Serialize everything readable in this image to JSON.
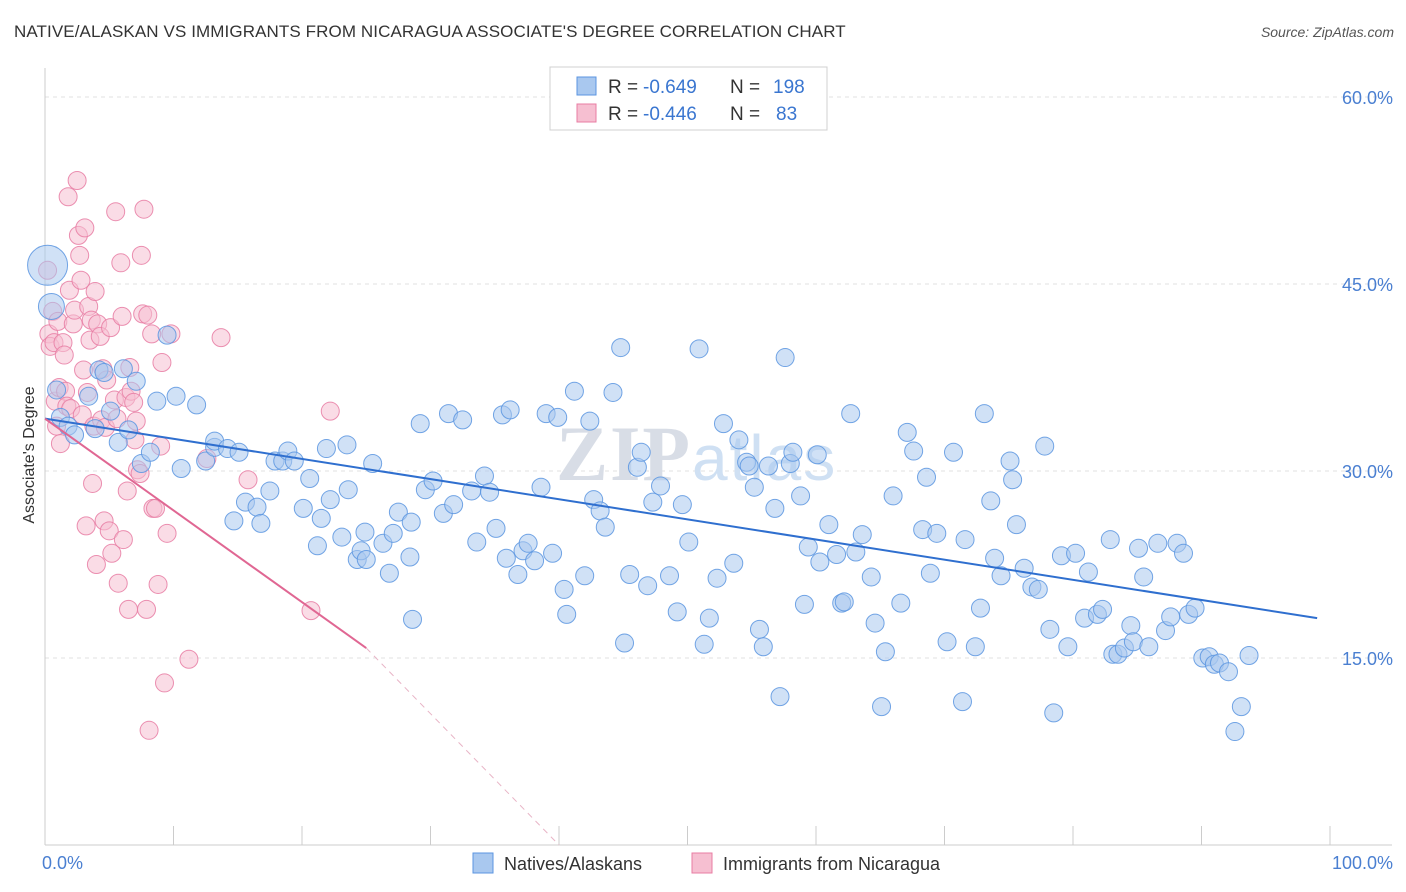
{
  "header": {
    "title": "NATIVE/ALASKAN VS IMMIGRANTS FROM NICARAGUA ASSOCIATE'S DEGREE CORRELATION CHART",
    "source": "Source: ZipAtlas.com"
  },
  "colors": {
    "blue": "#5b95e0",
    "blue_fill": "#a9c8ef",
    "pink": "#e87ca3",
    "pink_fill": "#f6bfd1",
    "blue_line": "#2f6fcf",
    "pink_line": "#e06793",
    "tick_text": "#4a7fd1"
  },
  "legend": {
    "rows": [
      {
        "r_label": "R =",
        "r_value": "-0.649",
        "n_label": "N =",
        "n_value": "198"
      },
      {
        "r_label": "R =",
        "r_value": "-0.446",
        "n_label": "N =",
        "n_value": "83"
      }
    ]
  },
  "bottom_legend": [
    "Natives/Alaskans",
    "Immigrants from Nicaragua"
  ],
  "watermark": "ZIPatlas",
  "chart_data": {
    "type": "scatter",
    "title": "NATIVE/ALASKAN VS IMMIGRANTS FROM NICARAGUA ASSOCIATE'S DEGREE CORRELATION CHART",
    "xlabel": "",
    "ylabel": "Associate's Degree",
    "xlim": [
      0,
      100
    ],
    "ylim": [
      0,
      60
    ],
    "x_tick_labels": [
      "0.0%",
      "100.0%"
    ],
    "y_tick_labels": [
      "15.0%",
      "30.0%",
      "45.0%",
      "60.0%"
    ],
    "y_ticks": [
      15,
      30,
      45,
      60
    ],
    "grid": true,
    "legend_position": "top-center",
    "series": [
      {
        "name": "Natives/Alaskans",
        "R": -0.649,
        "N": 198,
        "trend": {
          "x": [
            0,
            99
          ],
          "y": [
            34.2,
            18.2
          ]
        },
        "points": [
          [
            0.2,
            46.5
          ],
          [
            0.5,
            43.2
          ],
          [
            0.9,
            36.5
          ],
          [
            1.2,
            34.3
          ],
          [
            1.8,
            33.6
          ],
          [
            2.3,
            32.9
          ],
          [
            3.4,
            36
          ],
          [
            3.9,
            33.4
          ],
          [
            4.2,
            38.1
          ],
          [
            4.6,
            37.9
          ],
          [
            5.1,
            34.8
          ],
          [
            5.7,
            32.3
          ],
          [
            6.1,
            38.2
          ],
          [
            6.5,
            33.3
          ],
          [
            7.1,
            37.2
          ],
          [
            7.5,
            30.6
          ],
          [
            8.2,
            31.5
          ],
          [
            8.7,
            35.6
          ],
          [
            9.5,
            40.9
          ],
          [
            10.2,
            36
          ],
          [
            10.6,
            30.2
          ],
          [
            11.8,
            35.3
          ],
          [
            12.5,
            30.8
          ],
          [
            13.2,
            31.9
          ],
          [
            13.2,
            32.4
          ],
          [
            14.2,
            31.8
          ],
          [
            14.7,
            26
          ],
          [
            15.1,
            31.5
          ],
          [
            15.6,
            27.5
          ],
          [
            16.5,
            27.1
          ],
          [
            16.8,
            25.8
          ],
          [
            17.5,
            28.4
          ],
          [
            17.9,
            30.8
          ],
          [
            18.5,
            30.8
          ],
          [
            18.9,
            31.6
          ],
          [
            19.4,
            30.8
          ],
          [
            20.1,
            27
          ],
          [
            20.6,
            29.4
          ],
          [
            21.2,
            24
          ],
          [
            21.5,
            26.2
          ],
          [
            21.9,
            31.8
          ],
          [
            22.2,
            27.7
          ],
          [
            23.1,
            24.7
          ],
          [
            23.6,
            28.5
          ],
          [
            23.5,
            32.1
          ],
          [
            24.3,
            22.9
          ],
          [
            24.6,
            23.6
          ],
          [
            24.9,
            25.1
          ],
          [
            25,
            22.9
          ],
          [
            25.5,
            30.6
          ],
          [
            26.3,
            24.2
          ],
          [
            26.8,
            21.8
          ],
          [
            27.1,
            25
          ],
          [
            27.5,
            26.7
          ],
          [
            28.4,
            23.1
          ],
          [
            28.5,
            25.9
          ],
          [
            28.6,
            18.1
          ],
          [
            29.2,
            33.8
          ],
          [
            29.6,
            28.5
          ],
          [
            30.2,
            29.2
          ],
          [
            31,
            26.6
          ],
          [
            31.4,
            34.6
          ],
          [
            31.8,
            27.3
          ],
          [
            32.5,
            34.1
          ],
          [
            33.2,
            28.4
          ],
          [
            33.6,
            24.3
          ],
          [
            34.2,
            29.6
          ],
          [
            34.6,
            28.3
          ],
          [
            35.1,
            25.4
          ],
          [
            35.6,
            34.5
          ],
          [
            35.9,
            23
          ],
          [
            36.2,
            34.9
          ],
          [
            36.8,
            21.7
          ],
          [
            37.2,
            23.6
          ],
          [
            37.6,
            24.2
          ],
          [
            38.1,
            22.8
          ],
          [
            38.6,
            28.7
          ],
          [
            39,
            34.6
          ],
          [
            39.5,
            23.4
          ],
          [
            39.9,
            34.3
          ],
          [
            40.4,
            20.5
          ],
          [
            40.6,
            18.5
          ],
          [
            41.2,
            36.4
          ],
          [
            42,
            21.6
          ],
          [
            42.4,
            34
          ],
          [
            42.7,
            27.7
          ],
          [
            43.2,
            26.8
          ],
          [
            43.6,
            25.5
          ],
          [
            44.2,
            36.3
          ],
          [
            44.8,
            39.9
          ],
          [
            45.1,
            16.2
          ],
          [
            45.5,
            21.7
          ],
          [
            46.1,
            30.3
          ],
          [
            46.4,
            31.5
          ],
          [
            46.9,
            20.8
          ],
          [
            47.3,
            27.5
          ],
          [
            47.9,
            28.8
          ],
          [
            48.6,
            21.6
          ],
          [
            49.2,
            18.7
          ],
          [
            49.6,
            27.3
          ],
          [
            50.1,
            24.3
          ],
          [
            50.9,
            39.8
          ],
          [
            51.3,
            16.1
          ],
          [
            51.7,
            18.2
          ],
          [
            52.3,
            21.4
          ],
          [
            52.8,
            33.8
          ],
          [
            53.6,
            22.6
          ],
          [
            54,
            32.5
          ],
          [
            54.6,
            30.7
          ],
          [
            54.8,
            30.4
          ],
          [
            55.2,
            28.7
          ],
          [
            55.6,
            17.3
          ],
          [
            55.9,
            15.9
          ],
          [
            56.3,
            30.4
          ],
          [
            56.8,
            27
          ],
          [
            57.2,
            11.9
          ],
          [
            57.6,
            39.1
          ],
          [
            58,
            30.6
          ],
          [
            58.2,
            31.5
          ],
          [
            58.8,
            28
          ],
          [
            59.1,
            19.3
          ],
          [
            59.4,
            23.9
          ],
          [
            60.1,
            31.3
          ],
          [
            60.3,
            22.7
          ],
          [
            61,
            25.7
          ],
          [
            61.6,
            23.3
          ],
          [
            62,
            19.4
          ],
          [
            62.2,
            19.5
          ],
          [
            62.7,
            34.6
          ],
          [
            63.1,
            23.5
          ],
          [
            63.6,
            24.9
          ],
          [
            64.3,
            21.5
          ],
          [
            64.6,
            17.8
          ],
          [
            65.1,
            11.1
          ],
          [
            65.4,
            15.5
          ],
          [
            66,
            28
          ],
          [
            66.6,
            19.4
          ],
          [
            67.1,
            33.1
          ],
          [
            67.6,
            31.6
          ],
          [
            68.3,
            25.3
          ],
          [
            68.6,
            29.5
          ],
          [
            68.9,
            21.8
          ],
          [
            69.4,
            25
          ],
          [
            70.2,
            16.3
          ],
          [
            70.7,
            31.5
          ],
          [
            71.4,
            11.5
          ],
          [
            71.6,
            24.5
          ],
          [
            72.4,
            15.9
          ],
          [
            72.8,
            19
          ],
          [
            73.1,
            34.6
          ],
          [
            73.6,
            27.6
          ],
          [
            73.9,
            23
          ],
          [
            74.4,
            21.6
          ],
          [
            75.1,
            30.8
          ],
          [
            75.3,
            29.3
          ],
          [
            75.6,
            25.7
          ],
          [
            76.2,
            22.2
          ],
          [
            76.8,
            20.7
          ],
          [
            77.3,
            20.5
          ],
          [
            77.8,
            32
          ],
          [
            78.2,
            17.3
          ],
          [
            78.5,
            10.6
          ],
          [
            79.1,
            23.2
          ],
          [
            79.6,
            15.9
          ],
          [
            80.2,
            23.4
          ],
          [
            80.9,
            18.2
          ],
          [
            81.2,
            21.9
          ],
          [
            81.9,
            18.5
          ],
          [
            82.3,
            18.9
          ],
          [
            82.9,
            24.5
          ],
          [
            83.1,
            15.3
          ],
          [
            83.5,
            15.3
          ],
          [
            84,
            15.8
          ],
          [
            84.5,
            17.6
          ],
          [
            84.7,
            16.3
          ],
          [
            85.1,
            23.8
          ],
          [
            85.5,
            21.5
          ],
          [
            85.9,
            15.9
          ],
          [
            86.6,
            24.2
          ],
          [
            87.2,
            17.2
          ],
          [
            87.6,
            18.3
          ],
          [
            88.1,
            24.2
          ],
          [
            88.6,
            23.4
          ],
          [
            89,
            18.5
          ],
          [
            89.5,
            19
          ],
          [
            90.1,
            15
          ],
          [
            90.6,
            15.1
          ],
          [
            91,
            14.5
          ],
          [
            91.4,
            14.6
          ],
          [
            92.1,
            13.9
          ],
          [
            92.6,
            9.1
          ],
          [
            93.1,
            11.1
          ],
          [
            93.7,
            15.2
          ]
        ]
      },
      {
        "name": "Immigrants from Nicaragua",
        "R": -0.446,
        "N": 83,
        "trend": {
          "x": [
            0,
            25
          ],
          "y": [
            34.2,
            15.8
          ],
          "dashed_to": {
            "x": 40,
            "y": 0
          }
        },
        "points": [
          [
            0.2,
            46.1
          ],
          [
            0.3,
            41
          ],
          [
            0.4,
            40
          ],
          [
            0.6,
            42.8
          ],
          [
            0.7,
            40.3
          ],
          [
            0.8,
            35.6
          ],
          [
            0.9,
            33.6
          ],
          [
            1,
            42
          ],
          [
            1.1,
            36.7
          ],
          [
            1.2,
            32.2
          ],
          [
            1.4,
            40.3
          ],
          [
            1.5,
            39.3
          ],
          [
            1.6,
            36.4
          ],
          [
            1.7,
            35.2
          ],
          [
            1.8,
            52
          ],
          [
            1.9,
            44.5
          ],
          [
            2,
            35
          ],
          [
            2.2,
            41.8
          ],
          [
            2.3,
            42.9
          ],
          [
            2.5,
            53.3
          ],
          [
            2.6,
            48.9
          ],
          [
            2.7,
            47.3
          ],
          [
            2.8,
            45.3
          ],
          [
            2.9,
            34.5
          ],
          [
            3,
            38.1
          ],
          [
            3.1,
            49.5
          ],
          [
            3.2,
            25.6
          ],
          [
            3.3,
            36.3
          ],
          [
            3.4,
            43.2
          ],
          [
            3.5,
            40.5
          ],
          [
            3.6,
            42.1
          ],
          [
            3.7,
            29
          ],
          [
            3.8,
            33.6
          ],
          [
            3.9,
            44.4
          ],
          [
            4,
            22.5
          ],
          [
            4.1,
            41.8
          ],
          [
            4.3,
            40.8
          ],
          [
            4.4,
            34.1
          ],
          [
            4.5,
            38.2
          ],
          [
            4.6,
            26
          ],
          [
            4.7,
            33.5
          ],
          [
            4.8,
            37.3
          ],
          [
            5,
            25.2
          ],
          [
            5.1,
            41.5
          ],
          [
            5.2,
            23.4
          ],
          [
            5.4,
            35.7
          ],
          [
            5.5,
            50.8
          ],
          [
            5.6,
            34.2
          ],
          [
            5.7,
            21
          ],
          [
            5.9,
            46.7
          ],
          [
            6,
            42.4
          ],
          [
            6.1,
            24.5
          ],
          [
            6.3,
            35.9
          ],
          [
            6.4,
            28.4
          ],
          [
            6.5,
            18.9
          ],
          [
            6.6,
            38.3
          ],
          [
            6.7,
            36.4
          ],
          [
            6.9,
            35.5
          ],
          [
            7,
            32.5
          ],
          [
            7.1,
            34
          ],
          [
            7.2,
            30.1
          ],
          [
            7.4,
            29.8
          ],
          [
            7.5,
            47.3
          ],
          [
            7.6,
            42.6
          ],
          [
            7.7,
            51
          ],
          [
            7.9,
            18.9
          ],
          [
            8,
            42.5
          ],
          [
            8.1,
            9.2
          ],
          [
            8.3,
            41
          ],
          [
            8.4,
            27
          ],
          [
            8.6,
            27
          ],
          [
            8.8,
            20.9
          ],
          [
            9,
            32
          ],
          [
            9.1,
            38.7
          ],
          [
            9.3,
            13
          ],
          [
            9.5,
            25
          ],
          [
            9.8,
            41
          ],
          [
            11.2,
            14.9
          ],
          [
            12.6,
            31
          ],
          [
            13.7,
            40.7
          ],
          [
            15.8,
            29.3
          ],
          [
            20.7,
            18.8
          ],
          [
            22.2,
            34.8
          ]
        ]
      }
    ]
  }
}
